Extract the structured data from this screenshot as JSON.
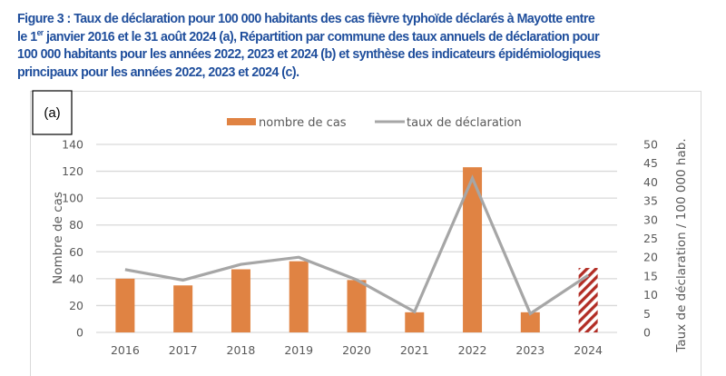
{
  "caption": {
    "line1": "Figure 3 : Taux de déclaration pour 100 000 habitants des cas fièvre typhoïde déclarés à Mayotte entre",
    "line2_pre": "le 1",
    "line2_sup": "er",
    "line2_post": " janvier 2016 et le 31 août 2024 (a), Répartition par commune des taux annuels de déclaration pour",
    "line3": "100 000 habitants pour les années 2022, 2023 et 2024 (b) et synthèse des indicateurs épidémiologiques",
    "line4": "principaux pour les années 2022, 2023 et 2024 (c)."
  },
  "panel_label": "(a)",
  "colors": {
    "bar": "#e08343",
    "line": "#a6a6a6",
    "hatch": "#b22d25",
    "grid": "#d9d9d9",
    "caption": "#1f4e9c"
  },
  "chart_data": {
    "type": "bar",
    "title": "",
    "categories": [
      "2016",
      "2017",
      "2018",
      "2019",
      "2020",
      "2021",
      "2022",
      "2023",
      "2024"
    ],
    "series": [
      {
        "name": "nombre de cas",
        "type": "bar",
        "axis": "left",
        "values": [
          40,
          35,
          47,
          53,
          39,
          15,
          123,
          15,
          48
        ],
        "hatched_categories": [
          "2024"
        ]
      },
      {
        "name": "taux de déclaration",
        "type": "line",
        "axis": "right",
        "values": [
          16.7,
          13.9,
          18.1,
          20.0,
          14.0,
          5.5,
          41.0,
          5.0,
          15.2
        ]
      }
    ],
    "xlabel": "",
    "ylabel": "Nombre de cas",
    "y2label": "Taux de déclaration / 100 000 hab.",
    "ylim": [
      0,
      140
    ],
    "yticks": [
      0,
      20,
      40,
      60,
      80,
      100,
      120,
      140
    ],
    "y2lim": [
      0,
      50
    ],
    "y2ticks": [
      0,
      5,
      10,
      15,
      20,
      25,
      30,
      35,
      40,
      45,
      50
    ],
    "grid": true,
    "legend_position": "top-center"
  }
}
